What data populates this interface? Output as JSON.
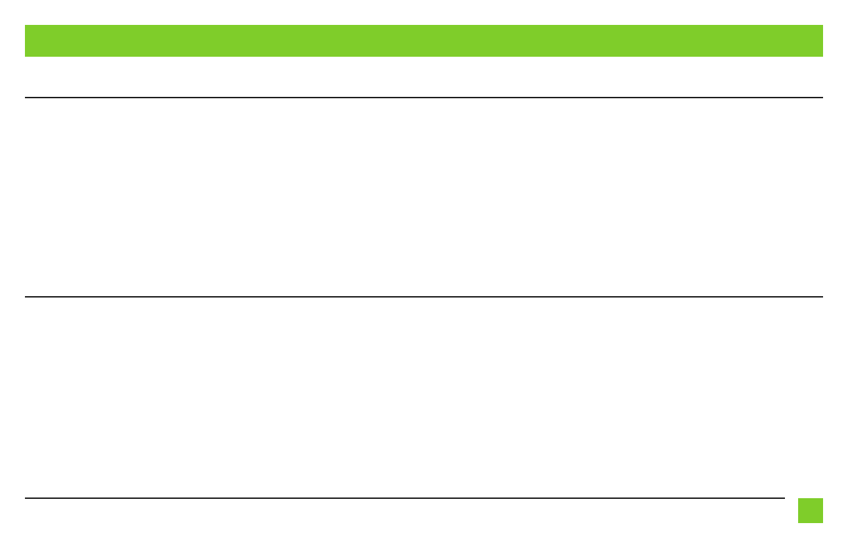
{
  "colors": {
    "accent": "#7fcd2a",
    "rule": "#1e1e1e"
  }
}
